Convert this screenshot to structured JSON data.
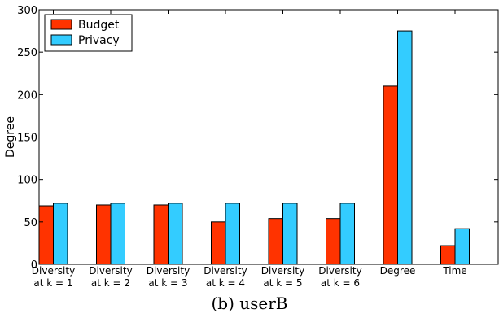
{
  "caption": "(b) userB",
  "colors": {
    "budget": "#ff3300",
    "privacy": "#33ccff"
  },
  "chart_data": {
    "type": "bar",
    "title": "",
    "xlabel": "",
    "ylabel": "Degree",
    "ylim": [
      0,
      300
    ],
    "yticks": [
      0,
      50,
      100,
      150,
      200,
      250,
      300
    ],
    "grid": false,
    "legend": "top-left",
    "categories": [
      [
        "Diversity",
        "at k = 1"
      ],
      [
        "Diversity",
        "at k = 2"
      ],
      [
        "Diversity",
        "at k = 3"
      ],
      [
        "Diversity",
        "at k = 4"
      ],
      [
        "Diversity",
        "at k = 5"
      ],
      [
        "Diversity",
        "at k = 6"
      ],
      [
        "Degree"
      ],
      [
        "Time"
      ]
    ],
    "series": [
      {
        "name": "Budget",
        "color": "#ff3300",
        "values": [
          69,
          70,
          70,
          50,
          54,
          54,
          210,
          22
        ]
      },
      {
        "name": "Privacy",
        "color": "#33ccff",
        "values": [
          72,
          72,
          72,
          72,
          72,
          72,
          275,
          42
        ]
      }
    ]
  }
}
